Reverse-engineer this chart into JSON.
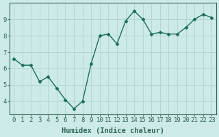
{
  "x": [
    0,
    1,
    2,
    3,
    4,
    5,
    6,
    7,
    8,
    9,
    10,
    11,
    12,
    13,
    14,
    15,
    16,
    17,
    18,
    19,
    20,
    21,
    22,
    23
  ],
  "y": [
    6.6,
    6.2,
    6.2,
    5.2,
    5.5,
    4.8,
    4.1,
    3.55,
    4.0,
    6.3,
    8.0,
    8.1,
    7.5,
    8.9,
    9.5,
    9.0,
    8.1,
    8.2,
    8.1,
    8.1,
    8.5,
    9.0,
    9.3,
    9.1
  ],
  "line_color": "#1a6b5a",
  "marker": "D",
  "marker_size": 2.5,
  "bg_color": "#cceae7",
  "grid_color": "#b0d4d0",
  "xlabel": "Humidex (Indice chaleur)",
  "xlim": [
    -0.5,
    23.5
  ],
  "ylim": [
    3.2,
    10.0
  ],
  "yticks": [
    4,
    5,
    6,
    7,
    8,
    9
  ],
  "xticks": [
    0,
    1,
    2,
    3,
    4,
    5,
    6,
    7,
    8,
    9,
    10,
    11,
    12,
    13,
    14,
    15,
    16,
    17,
    18,
    19,
    20,
    21,
    22,
    23
  ],
  "xlabel_fontsize": 7.5,
  "tick_fontsize": 6.5,
  "linewidth": 1.0,
  "spine_color": "#336655"
}
